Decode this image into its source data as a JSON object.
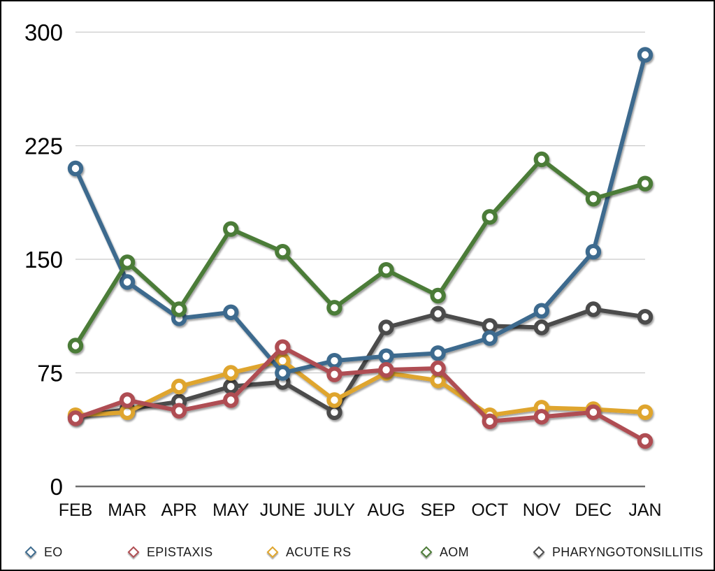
{
  "frame": {
    "background": "#FFFFFF",
    "border_color": "#000000"
  },
  "chart_data": {
    "type": "line",
    "title": "",
    "xlabel": "",
    "ylabel": "",
    "categories": [
      "FEB",
      "MAR",
      "APR",
      "MAY",
      "JUNE",
      "JULY",
      "AUG",
      "SEP",
      "OCT",
      "NOV",
      "DEC",
      "JAN"
    ],
    "yticks": [
      0,
      75,
      150,
      225,
      300
    ],
    "ylim": [
      0,
      300
    ],
    "grid": true,
    "legend_position": "bottom",
    "marker_shape": "open-circle",
    "legend_marker_shape": "open-diamond",
    "series": [
      {
        "name": "EO",
        "color": "#3D6B8E",
        "values": [
          210,
          135,
          111,
          115,
          75,
          83,
          86,
          88,
          98,
          116,
          155,
          285
        ]
      },
      {
        "name": "EPISTAXIS",
        "color": "#AF4D52",
        "values": [
          45,
          57,
          50,
          57,
          92,
          74,
          77,
          78,
          43,
          46,
          49,
          30
        ]
      },
      {
        "name": "ACUTE RS",
        "color": "#DFA52D",
        "values": [
          47,
          49,
          66,
          75,
          83,
          57,
          75,
          70,
          47,
          52,
          51,
          49
        ]
      },
      {
        "name": "AOM",
        "color": "#4C7B37",
        "values": [
          93,
          148,
          117,
          170,
          155,
          118,
          143,
          126,
          178,
          216,
          190,
          200
        ]
      },
      {
        "name": "PHARYNGOTONSILLITIS",
        "color": "#4C4C4C",
        "values": [
          46,
          51,
          56,
          66,
          69,
          49,
          105,
          114,
          106,
          105,
          117,
          112
        ]
      }
    ],
    "draw_order": [
      "PHARYNGOTONSILLITIS",
      "ACUTE RS",
      "EO",
      "AOM",
      "EPISTAXIS"
    ],
    "axis_colors": {
      "grid": "#C9C9C9",
      "zero_line": "#6E6E6E",
      "tick_text": "#000000"
    }
  },
  "legend": {
    "items": [
      "EO",
      "EPISTAXIS",
      "ACUTE RS",
      "AOM",
      "PHARYNGOTONSILLITIS"
    ]
  }
}
